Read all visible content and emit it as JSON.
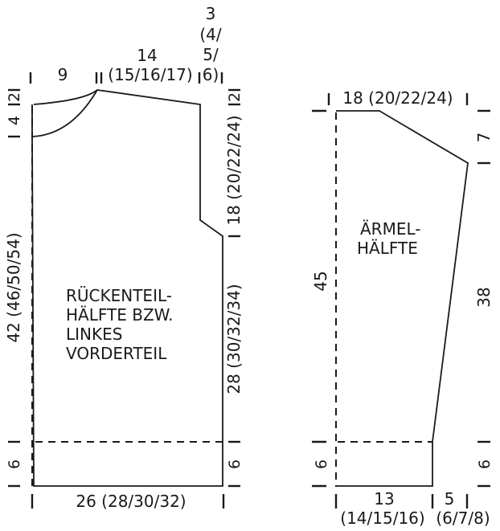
{
  "back_panel": {
    "title_lines": [
      "RÜCKENTEIL-",
      "HÄLFTE BZW.",
      "LINKES",
      "VORDERTEIL"
    ],
    "top_left_width": "9",
    "shoulder_width": "14",
    "shoulder_width_sizes": "(15/16/17)",
    "armhole_lines": [
      "3",
      "(4/",
      "5/",
      "6)"
    ],
    "right_top_2": "2",
    "armhole_depth": "18 (20/22/24)",
    "side_length": "28 (30/32/34)",
    "right_bottom_6": "6",
    "left_top_2": "2",
    "left_neck_4": "4",
    "total_length": "42 (46/50/54)",
    "left_bottom_6": "6",
    "bottom_width": "26 (28/30/32)"
  },
  "sleeve_panel": {
    "title_lines": [
      "ÄRMEL-",
      "HÄLFTE"
    ],
    "top_width": "18 (20/22/24)",
    "cap_height": "7",
    "sleeve_length_right": "38",
    "sleeve_length_left": "45",
    "left_bottom_6": "6",
    "right_bottom_6": "6",
    "bottom_width_lines": [
      "13",
      "(14/15/16)"
    ],
    "bottom_extra_lines": [
      "5",
      "(6/7/8)"
    ]
  }
}
